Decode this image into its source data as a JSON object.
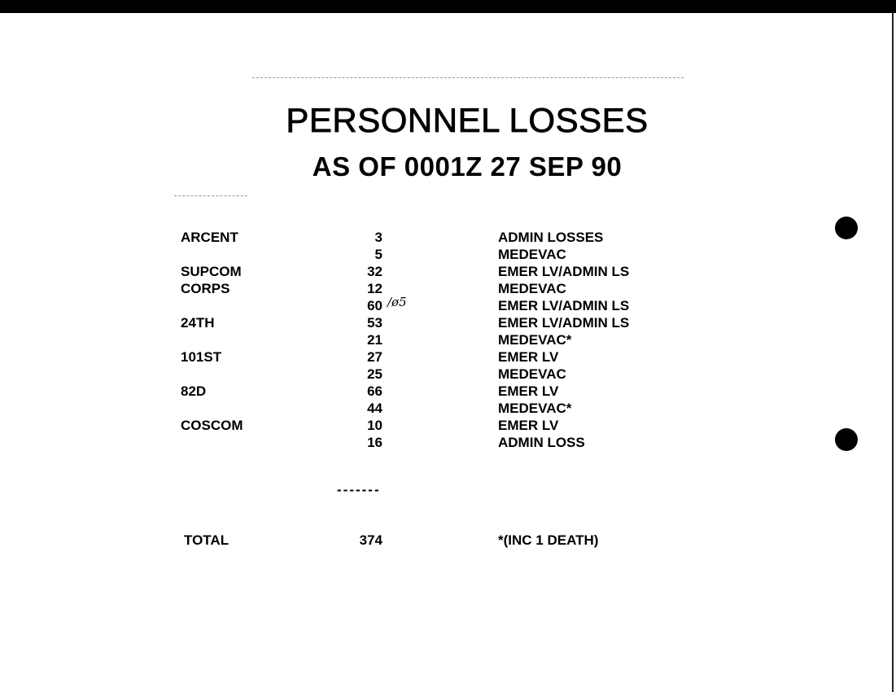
{
  "title": "PERSONNEL LOSSES",
  "subtitle": "AS OF 0001Z 27 SEP 90",
  "rows": [
    {
      "unit": "ARCENT",
      "count": "3",
      "category": "ADMIN LOSSES",
      "note": ""
    },
    {
      "unit": "",
      "count": "5",
      "category": "MEDEVAC",
      "note": ""
    },
    {
      "unit": "SUPCOM",
      "count": "32",
      "category": "EMER LV/ADMIN LS",
      "note": ""
    },
    {
      "unit": "CORPS",
      "count": "12",
      "category": "MEDEVAC",
      "note": ""
    },
    {
      "unit": "",
      "count": "60",
      "category": "EMER LV/ADMIN LS",
      "note": "/ø5"
    },
    {
      "unit": "24TH",
      "count": "53",
      "category": "EMER LV/ADMIN LS",
      "note": ""
    },
    {
      "unit": "",
      "count": "21",
      "category": "MEDEVAC*",
      "note": ""
    },
    {
      "unit": "101ST",
      "count": "27",
      "category": "EMER LV",
      "note": ""
    },
    {
      "unit": "",
      "count": "25",
      "category": "MEDEVAC",
      "note": ""
    },
    {
      "unit": "82D",
      "count": "66",
      "category": "EMER LV",
      "note": ""
    },
    {
      "unit": "",
      "count": "44",
      "category": "MEDEVAC*",
      "note": ""
    },
    {
      "unit": "COSCOM",
      "count": "10",
      "category": "EMER LV",
      "note": ""
    },
    {
      "unit": "",
      "count": "16",
      "category": "ADMIN LOSS",
      "note": ""
    }
  ],
  "separator": "-------",
  "total": {
    "label": "TOTAL",
    "count": "374",
    "footnote": "*(INC 1 DEATH)"
  }
}
